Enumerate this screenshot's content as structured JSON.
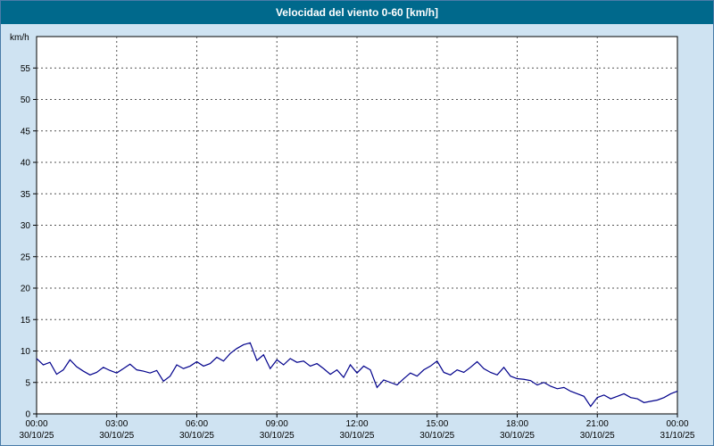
{
  "title": "Velocidad del viento 0-60 [km/h]",
  "colors": {
    "titlebar": "#00698c",
    "background": "#cfe3f2",
    "plot_background": "#ffffff",
    "plot_border": "#000000",
    "grid": "#555555",
    "line": "#00008b"
  },
  "chart_data": {
    "type": "line",
    "title": "Velocidad del viento 0-60 [km/h]",
    "ylabel": "km/h",
    "xlabel": "",
    "ylim": [
      0,
      60
    ],
    "x_hours_range": [
      0,
      24
    ],
    "grid": "dashed",
    "legend_position": "none",
    "y_ticks": [
      0,
      5,
      10,
      15,
      20,
      25,
      30,
      35,
      40,
      45,
      50,
      55
    ],
    "x_ticks": [
      {
        "time": "00:00",
        "date": "30/10/25",
        "hour": 0
      },
      {
        "time": "03:00",
        "date": "30/10/25",
        "hour": 3
      },
      {
        "time": "06:00",
        "date": "30/10/25",
        "hour": 6
      },
      {
        "time": "09:00",
        "date": "30/10/25",
        "hour": 9
      },
      {
        "time": "12:00",
        "date": "30/10/25",
        "hour": 12
      },
      {
        "time": "15:00",
        "date": "30/10/25",
        "hour": 15
      },
      {
        "time": "18:00",
        "date": "30/10/25",
        "hour": 18
      },
      {
        "time": "21:00",
        "date": "30/10/25",
        "hour": 21
      },
      {
        "time": "00:00",
        "date": "31/10/25",
        "hour": 24
      }
    ],
    "series": [
      {
        "name": "wind-speed",
        "unit": "km/h",
        "interval_minutes": 15,
        "start_time": "00:00",
        "values": [
          8.8,
          7.8,
          8.2,
          6.3,
          7.0,
          8.6,
          7.5,
          6.8,
          6.2,
          6.6,
          7.4,
          6.9,
          6.5,
          7.2,
          7.9,
          7.0,
          6.8,
          6.5,
          6.9,
          5.2,
          6.0,
          7.8,
          7.2,
          7.6,
          8.3,
          7.6,
          8.0,
          9.0,
          8.4,
          9.6,
          10.4,
          11.0,
          11.3,
          8.5,
          9.4,
          7.2,
          8.6,
          7.8,
          8.8,
          8.2,
          8.4,
          7.6,
          8.0,
          7.2,
          6.3,
          7.0,
          5.8,
          7.8,
          6.5,
          7.6,
          7.0,
          4.2,
          5.4,
          5.0,
          4.6,
          5.6,
          6.5,
          6.0,
          7.0,
          7.6,
          8.4,
          6.6,
          6.2,
          7.0,
          6.6,
          7.4,
          8.3,
          7.2,
          6.6,
          6.2,
          7.4,
          6.0,
          5.6,
          5.5,
          5.3,
          4.6,
          5.0,
          4.4,
          4.0,
          4.2,
          3.6,
          3.2,
          2.8,
          1.2,
          2.6,
          3.0,
          2.4,
          2.8,
          3.2,
          2.6,
          2.4,
          1.8,
          2.0,
          2.2,
          2.6,
          3.2,
          3.6
        ]
      }
    ]
  }
}
